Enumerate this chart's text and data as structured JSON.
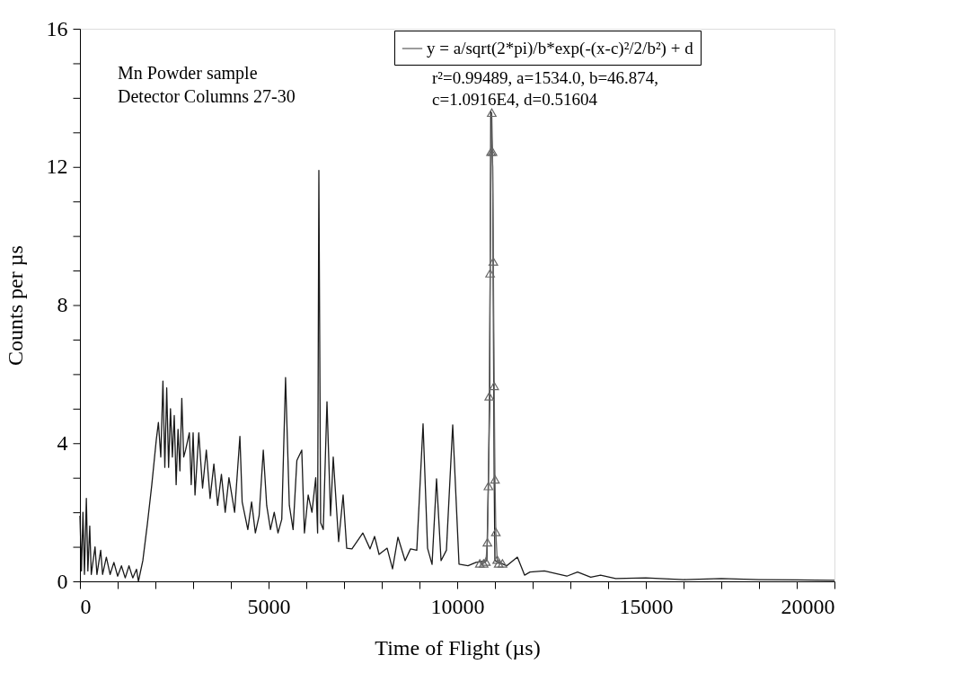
{
  "chart_data": {
    "type": "line",
    "xlabel": "Time of Flight (µs)",
    "ylabel": "Counts per µs",
    "xlim": [
      0,
      20000
    ],
    "ylim": [
      0,
      16
    ],
    "xticks": [
      0,
      {
        "value": 1000,
        "label": null
      },
      {
        "value": 2000,
        "label": null
      },
      {
        "value": 3000,
        "label": null
      },
      {
        "value": 4000,
        "label": null
      },
      5000,
      {
        "value": 6000,
        "label": null
      },
      {
        "value": 7000,
        "label": null
      },
      {
        "value": 8000,
        "label": null
      },
      {
        "value": 9000,
        "label": null
      },
      10000,
      {
        "value": 11000,
        "label": null
      },
      {
        "value": 12000,
        "label": null
      },
      {
        "value": 13000,
        "label": null
      },
      {
        "value": 14000,
        "label": null
      },
      15000,
      {
        "value": 16000,
        "label": null
      },
      {
        "value": 17000,
        "label": null
      },
      {
        "value": 18000,
        "label": null
      },
      {
        "value": 19000,
        "label": null
      },
      20000
    ],
    "yticks": [
      0,
      {
        "value": 1,
        "label": null
      },
      {
        "value": 2,
        "label": null
      },
      {
        "value": 3,
        "label": null
      },
      4,
      {
        "value": 5,
        "label": null
      },
      {
        "value": 6,
        "label": null
      },
      {
        "value": 7,
        "label": null
      },
      8,
      {
        "value": 9,
        "label": null
      },
      {
        "value": 10,
        "label": null
      },
      {
        "value": 11,
        "label": null
      },
      12,
      {
        "value": 13,
        "label": null
      },
      {
        "value": 14,
        "label": null
      },
      {
        "value": 15,
        "label": null
      },
      16
    ],
    "grid": false,
    "legend": "top right",
    "line_style": "solid",
    "annotations": [
      "Mn Powder sample",
      "Detector Columns 27-30",
      "r²=0.99489, a=1534.0, b=46.874,",
      "c=1.0916E4, d=0.51604"
    ],
    "series": [
      {
        "color": "#1a1a1a",
        "marker": "none",
        "x": [
          0,
          40,
          80,
          120,
          170,
          210,
          260,
          300,
          400,
          450,
          550,
          600,
          700,
          800,
          900,
          1000,
          1100,
          1200,
          1300,
          1400,
          1500,
          1550,
          1667,
          1786,
          1905,
          2024,
          2080,
          2143,
          2200,
          2250,
          2300,
          2350,
          2400,
          2450,
          2500,
          2550,
          2600,
          2650,
          2700,
          2750,
          2800,
          2900,
          2950,
          3000,
          3050,
          3150,
          3250,
          3350,
          3450,
          3550,
          3650,
          3750,
          3850,
          3950,
          4100,
          4240,
          4300,
          4450,
          4550,
          4650,
          4750,
          4860,
          4950,
          5050,
          5150,
          5250,
          5350,
          5450,
          5550,
          5650,
          5750,
          5880,
          5950,
          6050,
          6150,
          6250,
          6300,
          6333,
          6380,
          6450,
          6548,
          6643,
          6714,
          6857,
          6976,
          7071,
          7210,
          7500,
          7690,
          7810,
          7929,
          8143,
          8286,
          8429,
          8619,
          8762,
          8929,
          9095,
          9214,
          9333,
          9452,
          9572,
          9714,
          9881,
          10048,
          10286,
          10500,
          10786,
          10860,
          10890,
          10940,
          10980,
          11000,
          11310,
          11595,
          11786,
          11929,
          12310,
          12905,
          13190,
          13540,
          13800,
          14200,
          15000,
          16000,
          17000,
          18000,
          19000,
          20000
        ],
        "values": [
          1.9,
          0.3,
          2.0,
          0.2,
          2.4,
          0.3,
          1.6,
          0.2,
          1.0,
          0.2,
          0.9,
          0.2,
          0.7,
          0.2,
          0.55,
          0.15,
          0.45,
          0.1,
          0.45,
          0.1,
          0.35,
          0.0,
          0.6,
          1.65,
          2.8,
          4.1,
          4.6,
          3.6,
          5.8,
          3.3,
          5.6,
          3.3,
          5.0,
          3.6,
          4.8,
          2.8,
          4.4,
          3.2,
          5.3,
          3.6,
          3.8,
          4.3,
          2.8,
          4.3,
          2.5,
          4.3,
          2.7,
          3.8,
          2.4,
          3.4,
          2.2,
          3.1,
          2.0,
          3.0,
          2.0,
          4.2,
          2.3,
          1.5,
          2.3,
          1.4,
          1.9,
          3.8,
          2.2,
          1.5,
          2.0,
          1.4,
          1.8,
          5.9,
          2.2,
          1.5,
          3.5,
          3.8,
          1.4,
          2.5,
          2.0,
          3.0,
          1.4,
          11.9,
          1.7,
          1.5,
          5.2,
          1.9,
          3.6,
          1.15,
          2.5,
          0.96,
          0.94,
          1.4,
          0.94,
          1.3,
          0.78,
          0.96,
          0.36,
          1.28,
          0.6,
          0.94,
          0.9,
          4.56,
          0.96,
          0.49,
          2.97,
          0.6,
          0.9,
          4.53,
          0.5,
          0.45,
          0.55,
          0.6,
          5.0,
          13.6,
          12.0,
          3.0,
          0.6,
          0.45,
          0.7,
          0.18,
          0.27,
          0.3,
          0.15,
          0.27,
          0.12,
          0.18,
          0.08,
          0.1,
          0.05,
          0.08,
          0.05,
          0.04,
          0.03
        ]
      },
      {
        "name": "y = a/sqrt(2*pi)/b*exp(-(x-c)²/2/b²) + d",
        "color": "#666666",
        "marker": "triangle",
        "x": [
          10600,
          10700,
          10760,
          10800,
          10828,
          10850,
          10872,
          10896,
          10916,
          10936,
          10958,
          10980,
          11002,
          11024,
          11060,
          11100,
          11200
        ],
        "values": [
          0.52,
          0.52,
          0.57,
          1.13,
          2.76,
          5.36,
          8.92,
          12.44,
          13.57,
          12.44,
          9.26,
          5.66,
          2.95,
          1.43,
          0.63,
          0.52,
          0.52
        ]
      }
    ]
  }
}
